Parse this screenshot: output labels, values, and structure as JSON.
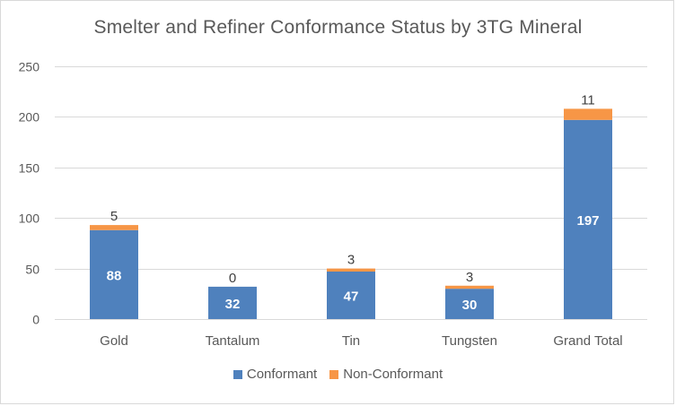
{
  "chart_data": {
    "type": "bar",
    "stacked": true,
    "title": "Smelter and Refiner Conformance Status by 3TG Mineral",
    "xlabel": "",
    "ylabel": "",
    "categories": [
      "Gold",
      "Tantalum",
      "Tin",
      "Tungsten",
      "Grand Total"
    ],
    "series": [
      {
        "name": "Conformant",
        "values": [
          88,
          32,
          47,
          30,
          197
        ],
        "color": "#4f81bd",
        "label_position": "inside"
      },
      {
        "name": "Non-Conformant",
        "values": [
          5,
          0,
          3,
          3,
          11
        ],
        "color": "#f79646",
        "label_position": "above"
      }
    ],
    "ylim": [
      0,
      250
    ],
    "yticks": [
      0,
      50,
      100,
      150,
      200,
      250
    ],
    "grid": true,
    "legend_position": "bottom"
  },
  "colors": {
    "axis_text": "#595959",
    "gridline": "#d9d9d9",
    "inside_label": "#ffffff",
    "above_label": "#404040"
  }
}
